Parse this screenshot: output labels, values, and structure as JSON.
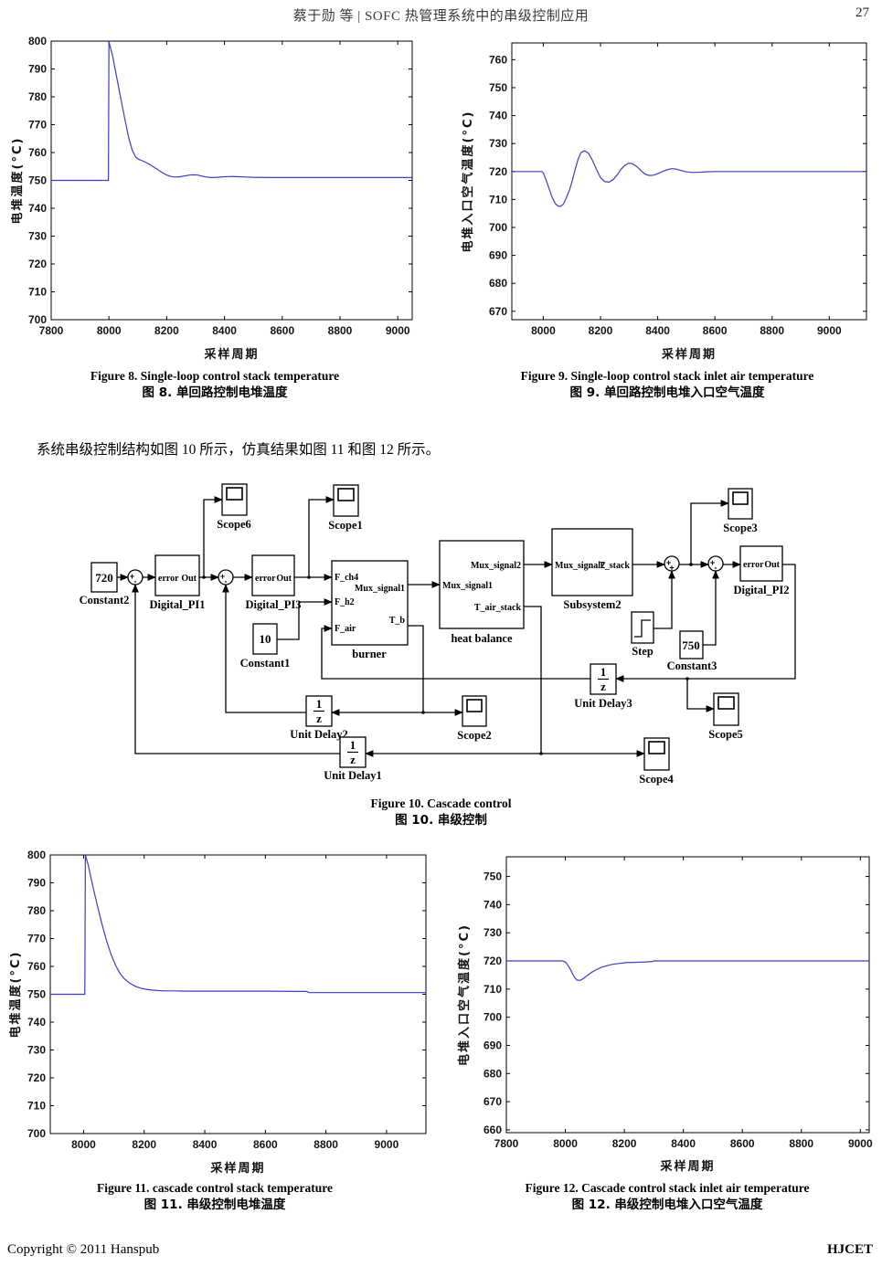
{
  "header": {
    "title": "蔡于勋 等 | SOFC 热管理系统中的串级控制应用",
    "page_number": "27"
  },
  "paragraph": "系统串级控制结构如图 10 所示，仿真结果如图 11 和图 12 所示。",
  "captions": {
    "fig8": {
      "en": "Figure 8. Single-loop control stack temperature",
      "zh": "图 8.  单回路控制电堆温度"
    },
    "fig9": {
      "en": "Figure 9. Single-loop control stack inlet air temperature",
      "zh": "图 9.  单回路控制电堆入口空气温度"
    },
    "fig10": {
      "en": "Figure 10. Cascade control",
      "zh": "图 10.  串级控制"
    },
    "fig11": {
      "en": "Figure 11. cascade control stack temperature",
      "zh": "图 11.  串级控制电堆温度"
    },
    "fig12": {
      "en": "Figure 12. Cascade control stack inlet air temperature",
      "zh": "图 12.  串级控制电堆入口空气温度"
    }
  },
  "footer": {
    "copyright": "Copyright © 2011 Hanspub",
    "journal": "HJCET"
  },
  "chart_data": [
    {
      "type": "line",
      "title": "Single-loop control stack temperature",
      "xlabel": "采样周期",
      "ylabel": "电堆温度(°C)",
      "xlim": [
        7800,
        9050
      ],
      "ylim": [
        700,
        800
      ],
      "xticks": [
        7800,
        8000,
        8200,
        8400,
        8600,
        8800,
        9000
      ],
      "yticks": [
        700,
        710,
        720,
        730,
        740,
        750,
        760,
        770,
        780,
        790,
        800
      ],
      "grid": false,
      "line_color": "#3d3dc0",
      "series": [
        {
          "name": "stack temperature",
          "x": [
            7800,
            7998,
            8000,
            8002,
            8012,
            8025,
            8040,
            8055,
            8068,
            8080,
            8092,
            8102,
            8112,
            8125,
            8140,
            8155,
            8170,
            8185,
            8200,
            8215,
            8228,
            8245,
            8262,
            8278,
            8292,
            8308,
            8322,
            8338,
            8355,
            8375,
            8400,
            8425,
            8450,
            8475,
            8500,
            8550,
            8600,
            8700,
            8800,
            8900,
            9000,
            9050
          ],
          "y": [
            750,
            750,
            800,
            799,
            795,
            788,
            780,
            772,
            765.5,
            761,
            758.5,
            757.6,
            757.2,
            756.6,
            755.8,
            754.8,
            753.8,
            752.8,
            751.9,
            751.4,
            751.2,
            751.3,
            751.6,
            751.9,
            752.0,
            751.9,
            751.5,
            751.2,
            751.0,
            751.1,
            751.3,
            751.4,
            751.3,
            751.2,
            751.1,
            751.0,
            751.0,
            751.0,
            751.0,
            751.0,
            751.0,
            751.0
          ]
        }
      ]
    },
    {
      "type": "line",
      "title": "Single-loop control stack inlet air temperature",
      "xlabel": "采样周期",
      "ylabel": "电堆入口空气温度(°C)",
      "xlim": [
        7890,
        9130
      ],
      "ylim": [
        667,
        766
      ],
      "xticks": [
        8000,
        8200,
        8400,
        8600,
        8800,
        9000
      ],
      "yticks": [
        670,
        680,
        690,
        700,
        710,
        720,
        730,
        740,
        750,
        760
      ],
      "grid": false,
      "line_color": "#3d3dc0",
      "series": [
        {
          "name": "inlet air temperature",
          "x": [
            7890,
            7995,
            8000,
            8008,
            8018,
            8030,
            8042,
            8052,
            8060,
            8070,
            8080,
            8092,
            8102,
            8112,
            8122,
            8132,
            8145,
            8158,
            8172,
            8185,
            8200,
            8215,
            8230,
            8245,
            8260,
            8272,
            8285,
            8298,
            8312,
            8328,
            8342,
            8355,
            8370,
            8385,
            8400,
            8415,
            8432,
            8448,
            8462,
            8478,
            8495,
            8515,
            8540,
            8570,
            8600,
            8700,
            8800,
            9000,
            9130
          ],
          "y": [
            720,
            720,
            719.5,
            717.5,
            714.5,
            711,
            708.5,
            707.6,
            707.5,
            708.3,
            710.5,
            713.5,
            717,
            721,
            724.5,
            726.8,
            727.4,
            726.5,
            724,
            721,
            717.8,
            716.4,
            716.2,
            717.2,
            719,
            720.8,
            722.2,
            723,
            722.8,
            721.7,
            720.3,
            719.1,
            718.6,
            718.7,
            719.2,
            719.9,
            720.6,
            721,
            720.9,
            720.5,
            720,
            719.7,
            719.7,
            719.9,
            720,
            720,
            720,
            720,
            720
          ]
        }
      ]
    },
    {
      "type": "line",
      "title": "Cascade control stack temperature",
      "xlabel": "采样周期",
      "ylabel": "电堆温度(°C)",
      "xlim": [
        7890,
        9130
      ],
      "ylim": [
        700,
        800
      ],
      "xticks": [
        8000,
        8200,
        8400,
        8600,
        8800,
        9000
      ],
      "yticks": [
        700,
        710,
        720,
        730,
        740,
        750,
        760,
        770,
        780,
        790,
        800
      ],
      "grid": false,
      "line_color": "#3d3dc0",
      "series": [
        {
          "name": "stack temperature",
          "x": [
            7890,
            8000,
            8004,
            8006,
            8016,
            8030,
            8045,
            8060,
            8075,
            8090,
            8105,
            8120,
            8135,
            8152,
            8170,
            8188,
            8205,
            8225,
            8248,
            8272,
            8300,
            8340,
            8390,
            8450,
            8530,
            8620,
            8700,
            8735,
            8745,
            8800,
            8900,
            9000,
            9130
          ],
          "y": [
            750,
            750,
            750,
            800,
            796,
            789,
            782,
            775.5,
            769.5,
            764.5,
            760.5,
            757.5,
            755.5,
            754,
            752.9,
            752.2,
            751.8,
            751.5,
            751.3,
            751.2,
            751.2,
            751.1,
            751.1,
            751.1,
            751.1,
            751.1,
            751.0,
            751.0,
            750.6,
            750.6,
            750.6,
            750.6,
            750.6
          ]
        }
      ]
    },
    {
      "type": "line",
      "title": "Cascade control stack inlet air temperature",
      "xlabel": "采样周期",
      "ylabel": "电堆入口空气温度(°C)",
      "xlim": [
        7800,
        9030
      ],
      "ylim": [
        659,
        757
      ],
      "xticks": [
        7800,
        8000,
        8200,
        8400,
        8600,
        8800,
        9000
      ],
      "yticks": [
        660,
        670,
        680,
        690,
        700,
        710,
        720,
        730,
        740,
        750
      ],
      "grid": false,
      "line_color": "#3d3dc0",
      "series": [
        {
          "name": "inlet air temperature",
          "x": [
            7800,
            7990,
            8000,
            8008,
            8016,
            8024,
            8032,
            8040,
            8050,
            8062,
            8075,
            8090,
            8105,
            8122,
            8140,
            8160,
            8182,
            8205,
            8230,
            8258,
            8285,
            8295,
            8300,
            8400,
            8600,
            8800,
            9030
          ],
          "y": [
            720,
            720,
            719.6,
            718.6,
            717.2,
            715.5,
            714.0,
            713.2,
            713.1,
            713.8,
            714.9,
            716.0,
            716.9,
            717.7,
            718.3,
            718.8,
            719.1,
            719.4,
            719.5,
            719.6,
            719.7,
            719.8,
            720,
            720,
            720,
            720,
            720
          ]
        }
      ]
    }
  ],
  "diagram": {
    "frac": {
      "num": "1",
      "den": "z"
    },
    "sums": {
      "sum1": {
        "a": "+",
        "b": "-"
      },
      "sum2": {
        "a": "+",
        "b": "-"
      },
      "sum3": {
        "a": "+",
        "b": "+"
      },
      "sum4": {
        "a": "+",
        "b": "-"
      }
    },
    "blocks": {
      "constant2": {
        "value": "720",
        "name": "Constant2"
      },
      "constant1": {
        "value": "10",
        "name": "Constant1"
      },
      "constant3": {
        "value": "750",
        "name": "Constant3"
      },
      "digital_pi1": {
        "in": "error",
        "out": "Out",
        "name": "Digital_PI1"
      },
      "digital_pi3": {
        "in": "error",
        "out": "Out",
        "name": "Digital_PI3"
      },
      "digital_pi2": {
        "in": "error",
        "out": "Out",
        "name": "Digital_PI2"
      },
      "burner": {
        "name": "burner",
        "in1": "F_ch4",
        "in2": "F_h2",
        "in3": "F_air",
        "out1": "Mux_signal1",
        "out2": "T_b"
      },
      "heat_balance": {
        "name": "heat balance",
        "in1": "Mux_signal1",
        "out1": "Mux_signal2",
        "out2": "T_air_stack"
      },
      "subsystem2": {
        "name": "Subsystem2",
        "in1": "Mux_signal2",
        "out1": "T_stack"
      },
      "step": {
        "name": "Step"
      },
      "unit_delay1": {
        "name": "Unit Delay1"
      },
      "unit_delay2": {
        "name": "Unit Delay2"
      },
      "unit_delay3": {
        "name": "Unit Delay3"
      },
      "scope1": {
        "name": "Scope1"
      },
      "scope2": {
        "name": "Scope2"
      },
      "scope3": {
        "name": "Scope3"
      },
      "scope4": {
        "name": "Scope4"
      },
      "scope5": {
        "name": "Scope5"
      },
      "scope6": {
        "name": "Scope6"
      }
    }
  }
}
